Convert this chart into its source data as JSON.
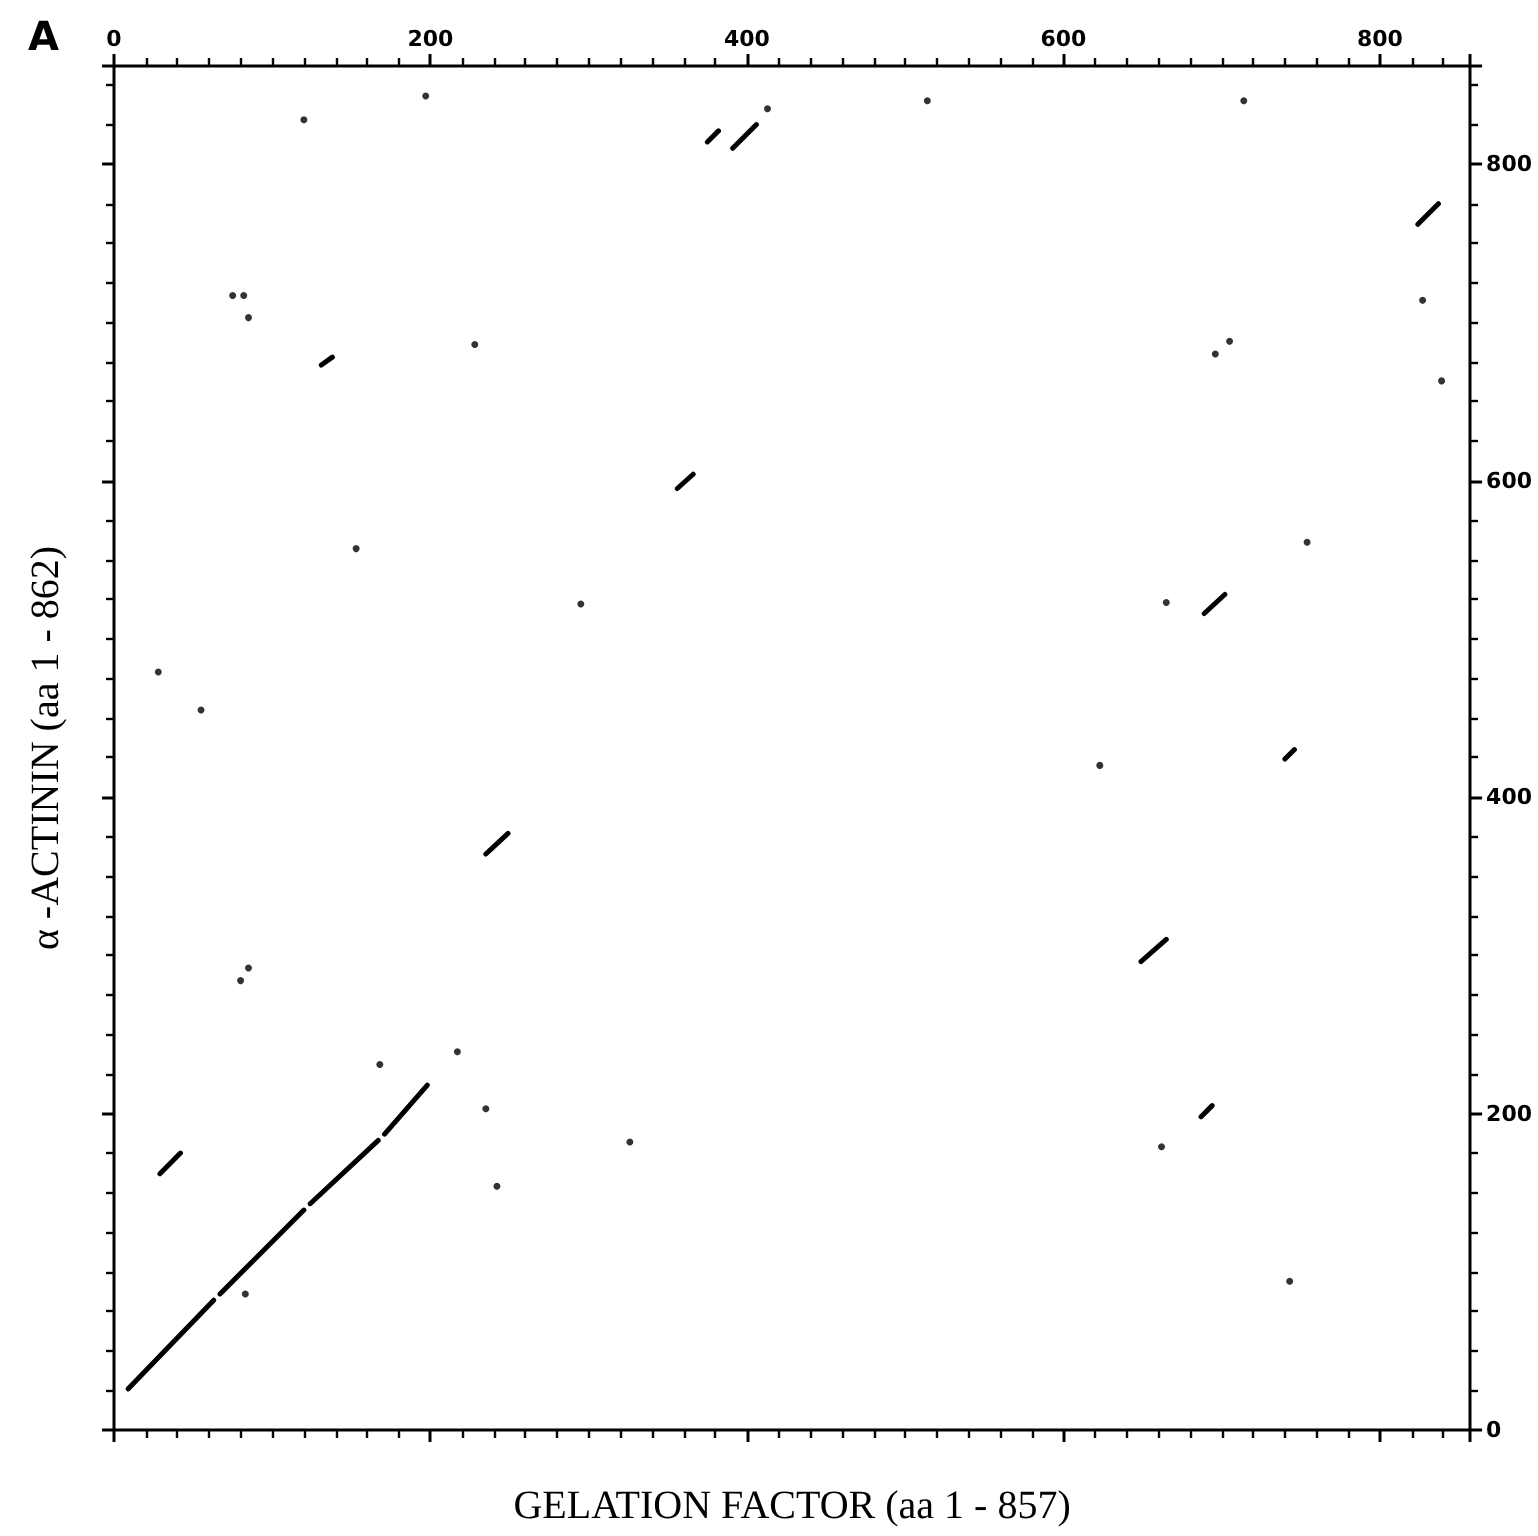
{
  "chart_data": {
    "type": "scatter",
    "xlabel": "GELATION FACTOR (aa 1 - 857)",
    "ylabel": "α -ACTININ (aa 1 - 862)",
    "annotations": [
      "A"
    ],
    "xlim": [
      0,
      857
    ],
    "xticks": [
      0,
      200,
      400,
      600,
      800
    ],
    "ylim": [
      0,
      862
    ],
    "yticks": [
      0,
      200,
      400,
      600,
      800
    ],
    "grid": false,
    "marker": "circle",
    "series": [
      {
        "type": "line",
        "color": "#000000",
        "line_style": "solid",
        "marker": "none",
        "x": [
          9,
          63,
          65,
          67,
          120,
          122,
          124,
          167,
          169,
          171,
          198,
          110,
          29,
          42,
          140,
          235,
          249,
          300,
          375,
          382,
          385,
          391,
          406,
          250,
          131,
          138,
          250,
          356,
          366,
          600,
          824,
          837,
          750,
          689,
          702,
          720,
          740,
          746,
          700,
          649,
          665,
          670,
          687,
          694
        ],
        "values": [
          26,
          82,
          null,
          86,
          139,
          null,
          143,
          183,
          null,
          187,
          218,
          null,
          162,
          175,
          null,
          364,
          377,
          null,
          814,
          821,
          null,
          810,
          825,
          null,
          673,
          678,
          null,
          595,
          604,
          null,
          762,
          775,
          null,
          516,
          528,
          null,
          424,
          430,
          null,
          296,
          310,
          null,
          198,
          205
        ]
      },
      {
        "color": "#000000",
        "x": [
          80,
          85,
          168,
          217,
          235,
          242,
          326,
          83,
          197,
          120,
          413,
          75,
          82,
          85,
          228,
          153,
          295,
          28,
          55,
          514,
          714,
          827,
          696,
          705,
          839,
          665,
          754,
          623,
          662,
          743
        ],
        "values": [
          284,
          292,
          231,
          239,
          203,
          154,
          182,
          86,
          843,
          828,
          835,
          717,
          717,
          703,
          686,
          557,
          522,
          479,
          455,
          840,
          840,
          714,
          680,
          688,
          663,
          523,
          561,
          420,
          179,
          94
        ]
      }
    ]
  }
}
